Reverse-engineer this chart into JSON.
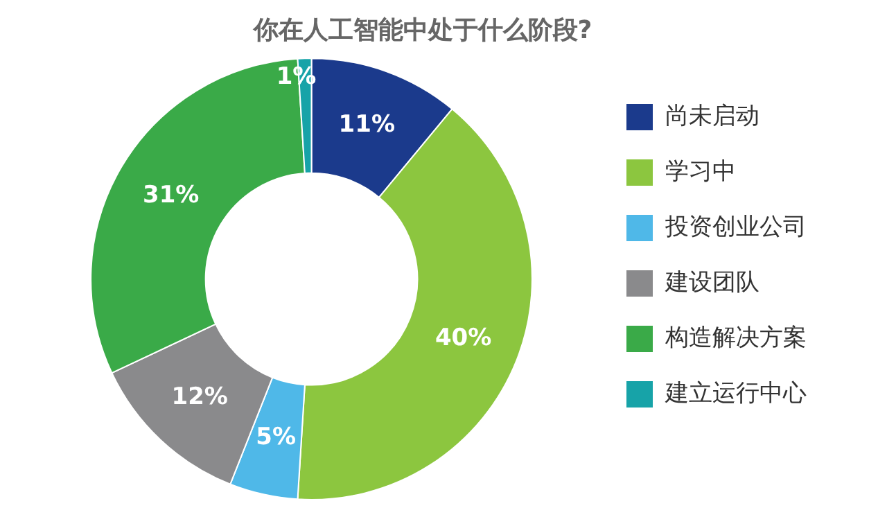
{
  "chart_data": {
    "type": "donut",
    "title": "你在人工智能中处于什么阶段?",
    "categories": [
      "尚未启动",
      "学习中",
      "投资创业公司",
      "建设团队",
      "构造解决方案",
      "建立运行中心"
    ],
    "values": [
      11,
      40,
      5,
      12,
      31,
      1
    ],
    "colors": [
      "#1b3a8c",
      "#8cc63f",
      "#4fb8e8",
      "#8a8a8c",
      "#3aaa48",
      "#17a3a8"
    ],
    "value_labels": [
      "11%",
      "40%",
      "5%",
      "12%",
      "31%",
      "1%"
    ],
    "legend": "right"
  }
}
